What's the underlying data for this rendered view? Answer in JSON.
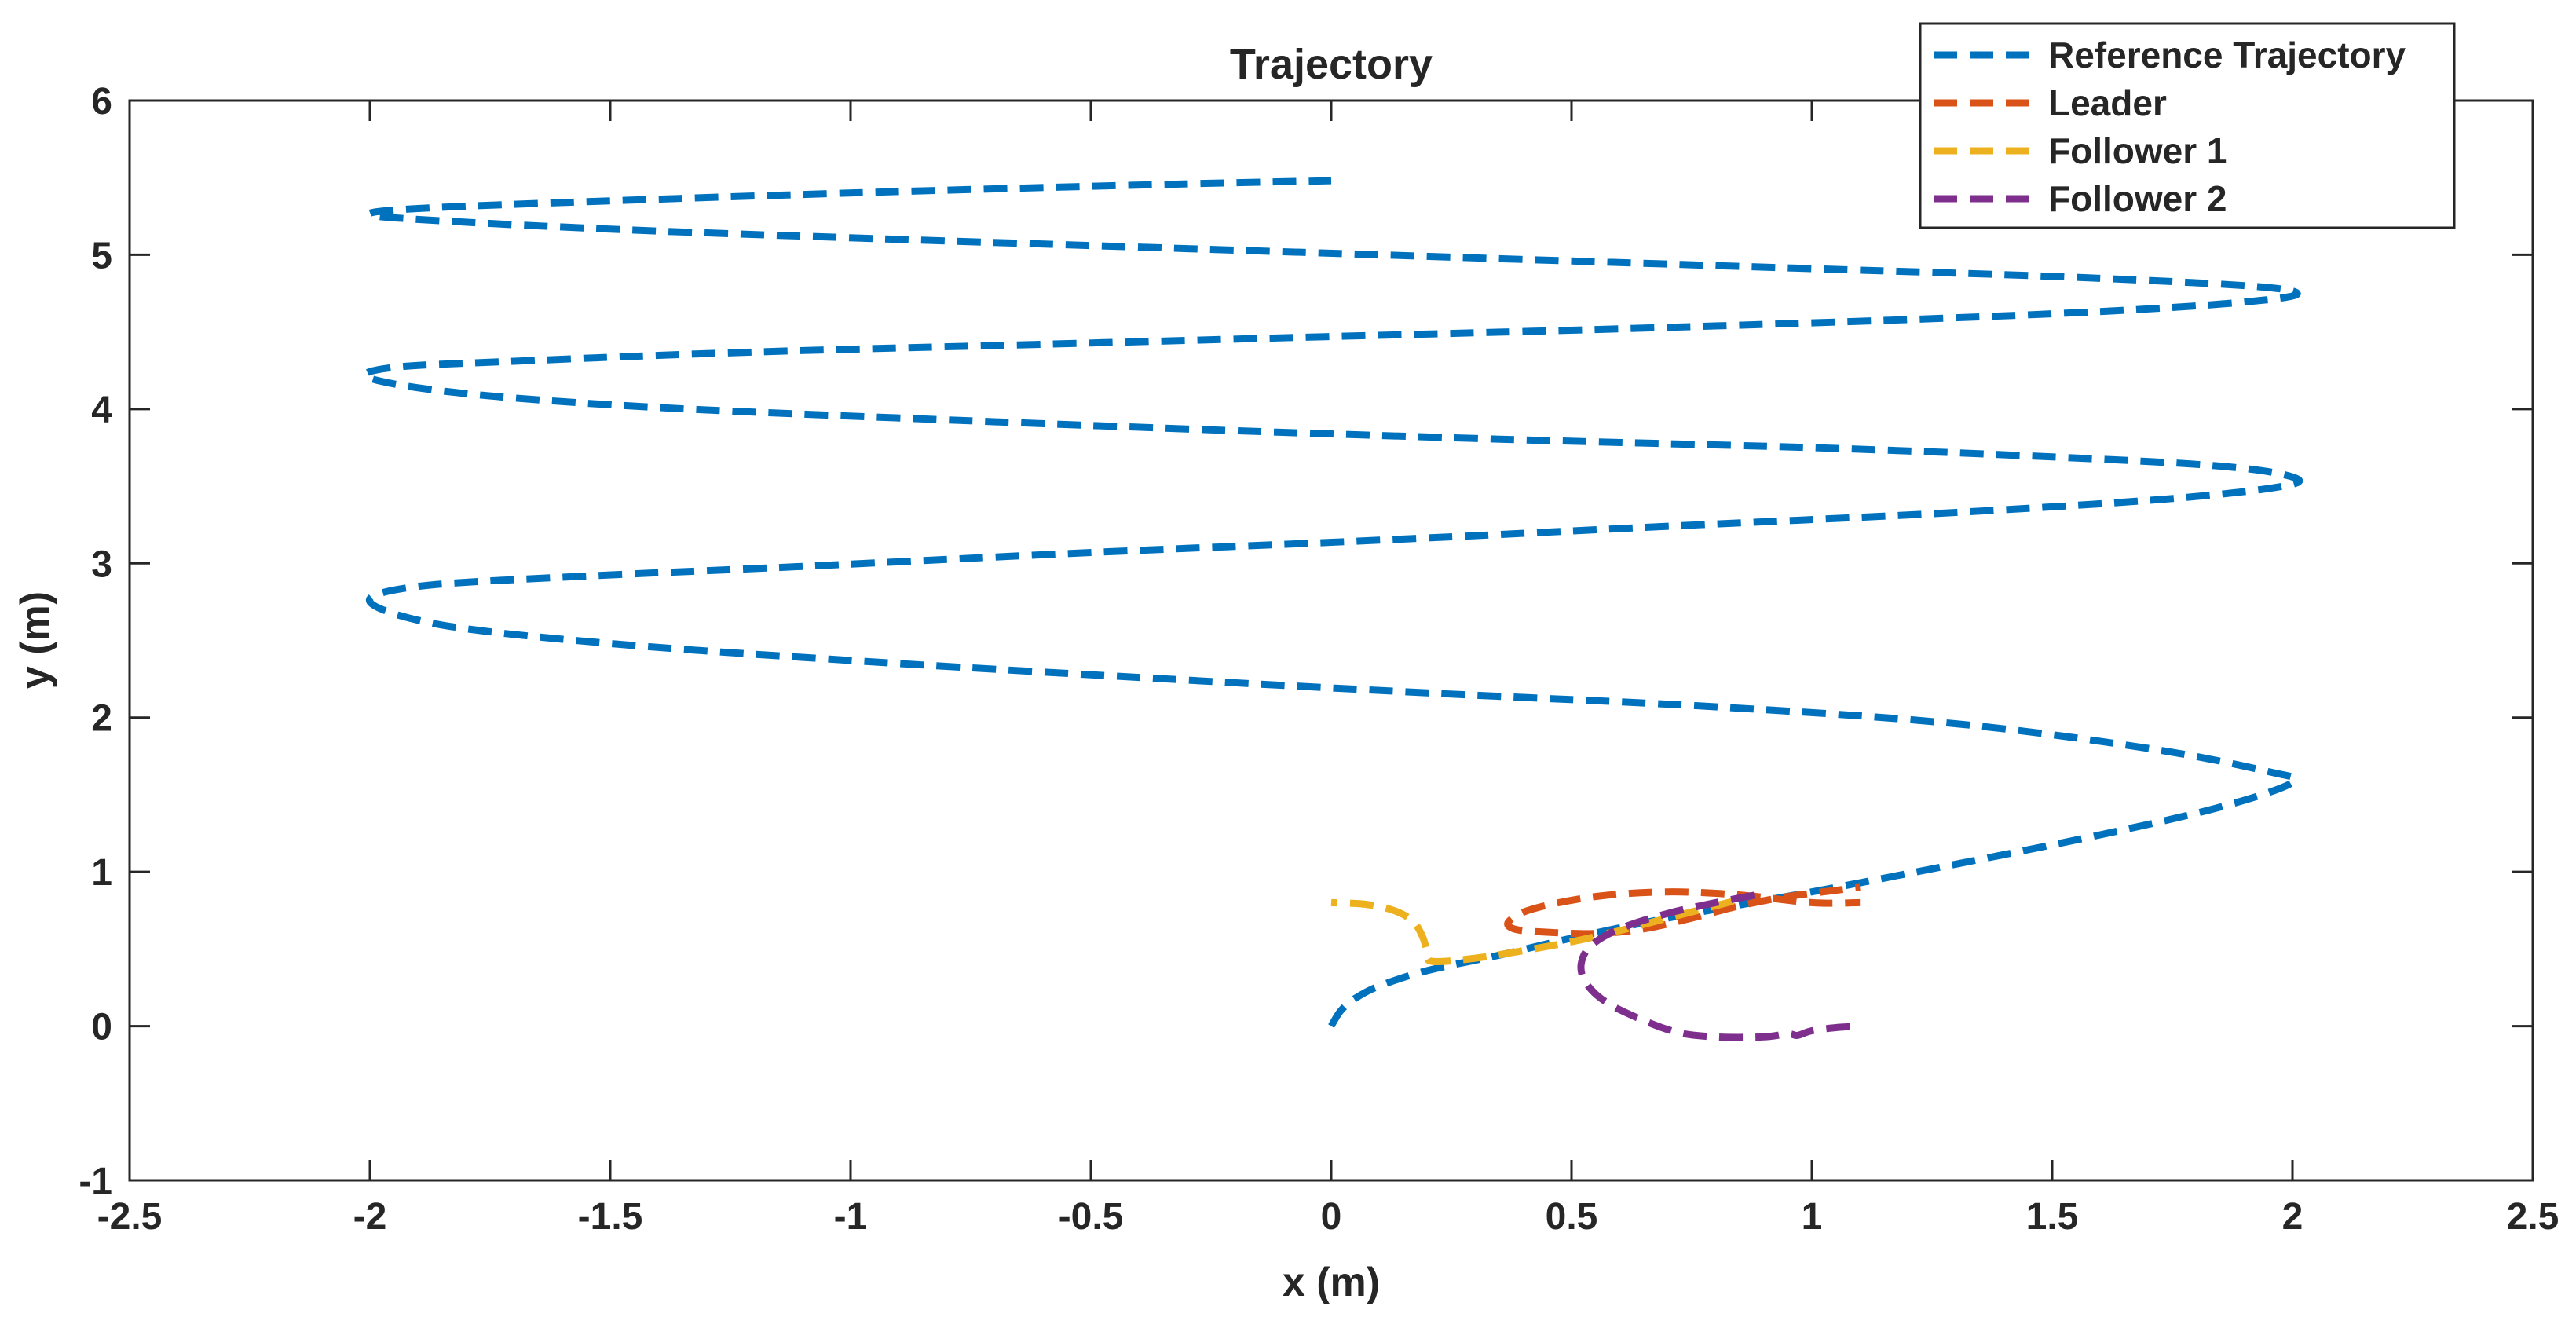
{
  "chart_data": {
    "type": "line",
    "title": "Trajectory",
    "xlabel": "x (m)",
    "ylabel": "y (m)",
    "xlim": [
      -2.5,
      2.5
    ],
    "ylim": [
      -1,
      6
    ],
    "xticks": [
      -2.5,
      -2,
      -1.5,
      -1,
      -0.5,
      0,
      0.5,
      1,
      1.5,
      2,
      2.5
    ],
    "xtick_labels": [
      "-2.5",
      "-2",
      "-1.5",
      "-1",
      "-0.5",
      "0",
      "0.5",
      "1",
      "1.5",
      "2",
      "2.5"
    ],
    "yticks": [
      -1,
      0,
      1,
      2,
      3,
      4,
      5,
      6
    ],
    "ytick_labels": [
      "-1",
      "0",
      "1",
      "2",
      "3",
      "4",
      "5",
      "6"
    ],
    "grid": false,
    "legend_position": "top-right",
    "series": [
      {
        "name": "Reference Trajectory",
        "color": "#0072BD",
        "x": [
          0,
          0.02,
          0.05,
          0.1,
          0.2,
          0.35,
          0.5,
          0.7,
          1.0,
          1.3,
          1.6,
          1.85,
          2.0,
          1.95,
          1.7,
          1.3,
          0.8,
          0.2,
          -0.4,
          -1.0,
          -1.5,
          -1.85,
          -2.0,
          -1.9,
          -1.6,
          -1.1,
          -0.5,
          0.1,
          0.7,
          1.3,
          1.75,
          1.98,
          2.0,
          1.85,
          1.5,
          1.0,
          0.4,
          -0.2,
          -0.8,
          -1.4,
          -1.8,
          -2.0,
          -1.95,
          -1.7,
          -1.2,
          -0.6,
          0.0,
          0.6,
          1.2,
          1.65,
          1.92,
          2.01,
          1.9,
          1.5,
          0.9,
          0.3,
          -0.3,
          -0.9,
          -1.45,
          -1.85,
          -2.0,
          -1.9,
          -1.5,
          -0.9,
          -0.3,
          0.0
        ],
        "y": [
          0,
          0.1,
          0.18,
          0.26,
          0.36,
          0.46,
          0.57,
          0.7,
          0.87,
          1.05,
          1.24,
          1.42,
          1.58,
          1.65,
          1.8,
          1.96,
          2.07,
          2.16,
          2.26,
          2.37,
          2.48,
          2.6,
          2.75,
          2.85,
          2.91,
          2.98,
          3.07,
          3.15,
          3.24,
          3.33,
          3.42,
          3.5,
          3.56,
          3.63,
          3.69,
          3.75,
          3.8,
          3.86,
          3.93,
          4.01,
          4.1,
          4.2,
          4.27,
          4.31,
          4.37,
          4.42,
          4.47,
          4.52,
          4.58,
          4.64,
          4.7,
          4.75,
          4.8,
          4.86,
          4.92,
          4.98,
          5.04,
          5.1,
          5.16,
          5.22,
          5.26,
          5.3,
          5.35,
          5.41,
          5.46,
          5.48
        ]
      },
      {
        "name": "Leader",
        "color": "#D95319",
        "x": [
          1.1,
          1.0,
          0.85,
          0.7,
          0.55,
          0.42,
          0.37,
          0.38,
          0.44,
          0.55,
          0.65,
          0.75,
          0.85,
          0.95,
          1.05,
          1.1
        ],
        "y": [
          0.8,
          0.8,
          0.85,
          0.87,
          0.84,
          0.76,
          0.68,
          0.63,
          0.61,
          0.6,
          0.63,
          0.7,
          0.78,
          0.84,
          0.88,
          0.9
        ]
      },
      {
        "name": "Follower 1",
        "color": "#EDB120",
        "x": [
          0,
          0.07,
          0.13,
          0.17,
          0.19,
          0.2,
          0.21,
          0.3,
          0.42,
          0.55,
          0.7,
          0.85
        ],
        "y": [
          0.8,
          0.79,
          0.75,
          0.68,
          0.58,
          0.48,
          0.42,
          0.44,
          0.5,
          0.58,
          0.7,
          0.82
        ]
      },
      {
        "name": "Follower 2",
        "color": "#7E2F8E",
        "x": [
          1.1,
          1.05,
          1.0,
          0.97,
          0.95,
          0.9,
          0.8,
          0.72,
          0.64,
          0.57,
          0.53,
          0.52,
          0.54,
          0.6,
          0.7,
          0.8,
          0.9
        ],
        "y": [
          0.0,
          -0.01,
          -0.03,
          -0.06,
          -0.05,
          -0.07,
          -0.07,
          -0.04,
          0.05,
          0.16,
          0.28,
          0.4,
          0.52,
          0.63,
          0.73,
          0.8,
          0.86
        ]
      }
    ]
  }
}
